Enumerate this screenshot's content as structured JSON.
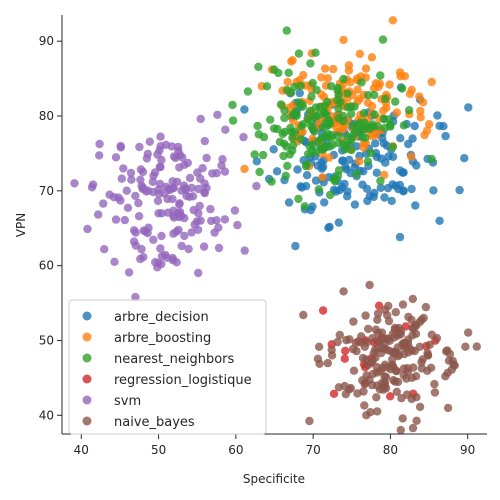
{
  "chart_data": {
    "type": "scatter",
    "title": "",
    "xlabel": "Specificite",
    "ylabel": "VPN",
    "xlim": [
      37.5,
      92.5
    ],
    "ylim": [
      37.5,
      93.5
    ],
    "xticks": [
      40,
      50,
      60,
      70,
      80,
      90
    ],
    "yticks": [
      40,
      50,
      60,
      70,
      80,
      90
    ],
    "grid": false,
    "legend_position": "lower-left",
    "series": [
      {
        "name": "arbre_decision",
        "color": "#1f77b4",
        "center": [
          75,
          74
        ],
        "spread": [
          5.2,
          4.0
        ],
        "count": 160,
        "seed": 11
      },
      {
        "name": "arbre_boosting",
        "color": "#ff7f0e",
        "center": [
          74,
          81
        ],
        "spread": [
          5.0,
          3.6
        ],
        "count": 150,
        "seed": 23
      },
      {
        "name": "nearest_neighbors",
        "color": "#2ca02c",
        "center": [
          72,
          79
        ],
        "spread": [
          4.6,
          4.0
        ],
        "count": 170,
        "seed": 37
      },
      {
        "name": "regression_logistique",
        "color": "#d62728",
        "center": [
          79,
          48
        ],
        "spread": [
          4.0,
          4.0
        ],
        "count": 20,
        "seed": 41
      },
      {
        "name": "svm",
        "color": "#9467bd",
        "center": [
          51,
          69
        ],
        "spread": [
          4.4,
          4.6
        ],
        "count": 170,
        "seed": 53
      },
      {
        "name": "naive_bayes",
        "color": "#8c564b",
        "center": [
          80,
          48
        ],
        "spread": [
          4.2,
          3.7
        ],
        "count": 190,
        "seed": 67
      }
    ]
  }
}
